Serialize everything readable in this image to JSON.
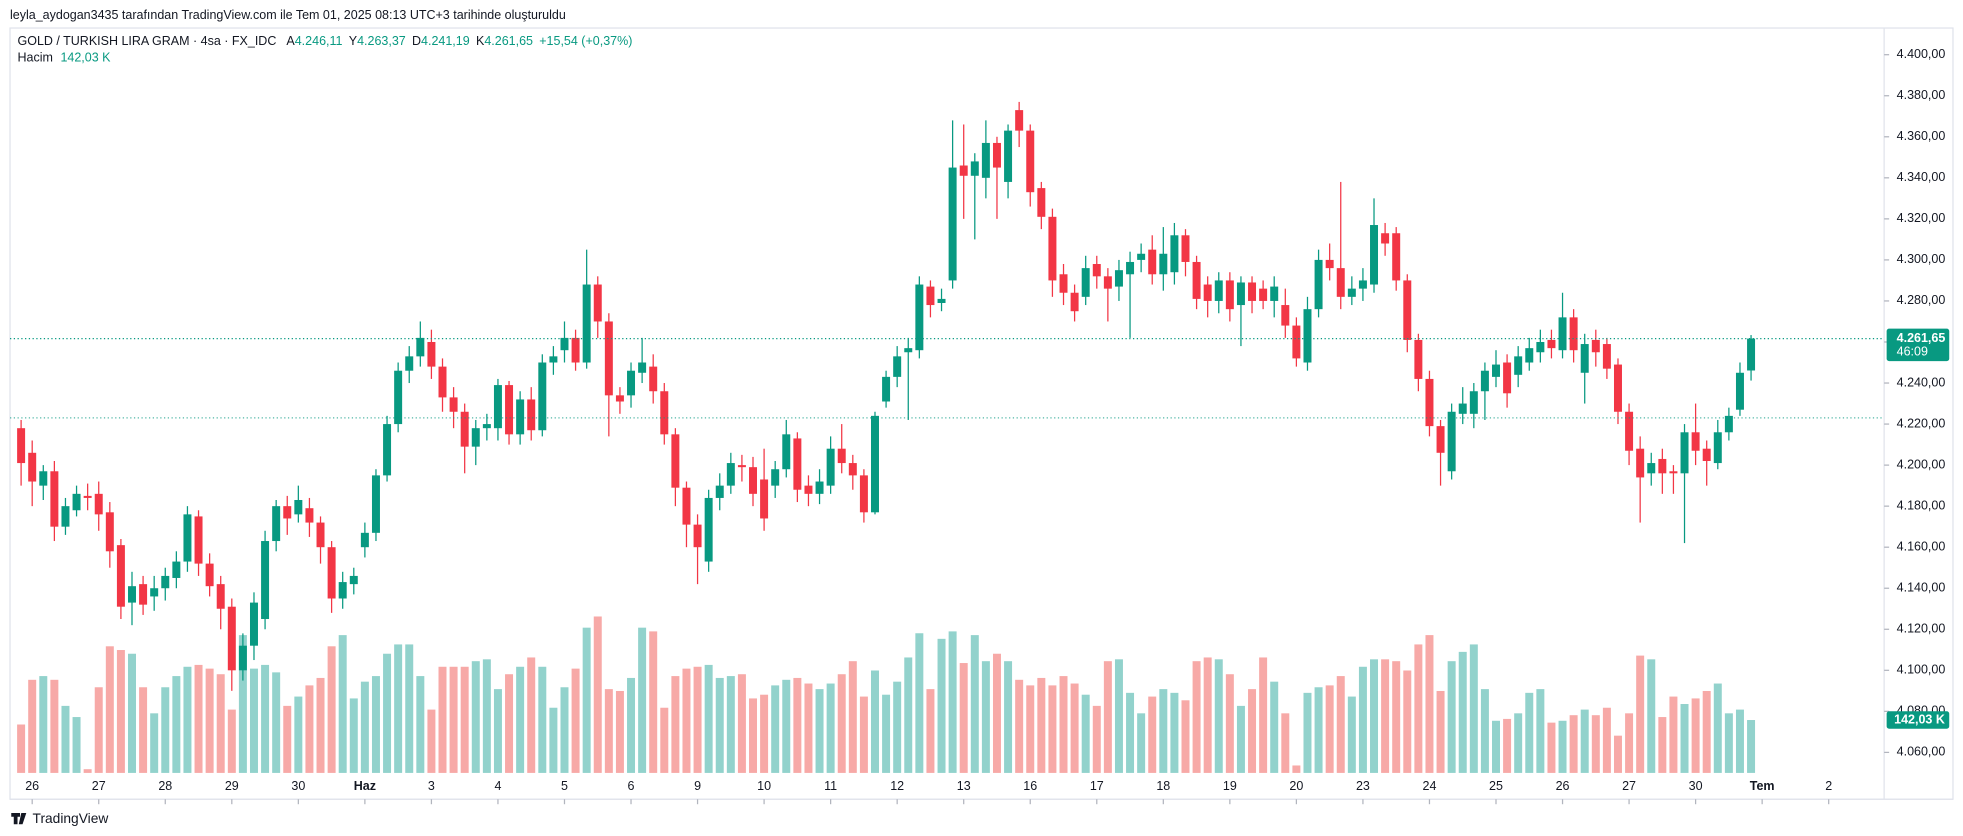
{
  "header": "leyla_aydogan3435 tarafından TradingView.com ile Tem 01, 2025 08:13 UTC+3 tarihinde oluşturuldu",
  "footer": "TradingView",
  "chart_data": {
    "type": "candlestick",
    "title": "GOLD / TURKISH LIRA GRAM · 4sa · FX_IDC",
    "ohlc_legend": [
      {
        "label": "A",
        "value": "4.246,11"
      },
      {
        "label": "Y",
        "value": "4.263,37"
      },
      {
        "label": "D",
        "value": "4.241,19"
      },
      {
        "label": "K",
        "value": "4.261,65"
      }
    ],
    "change": "+15,54 (+0,37%)",
    "volume_title": "Hacim",
    "volume_legend": "142,03 K",
    "last_price_label": "4.261,65",
    "countdown": "46:09",
    "last_volume_label": "142,03 K",
    "ref_price": 4223,
    "up_color": "#089981",
    "down_color": "#f23645",
    "volume_up_color": "#92d2cc",
    "volume_down_color": "#f7a9a7",
    "grid": false,
    "ylim": [
      4050,
      4413
    ],
    "vlim": [
      0,
      600
    ],
    "xlim": [
      -1,
      168
    ],
    "yticks": [
      {
        "value": 4060,
        "label": "4.060,00"
      },
      {
        "value": 4080,
        "label": "4.080,00"
      },
      {
        "value": 4100,
        "label": "4.100,00"
      },
      {
        "value": 4120,
        "label": "4.120,00"
      },
      {
        "value": 4140,
        "label": "4.140,00"
      },
      {
        "value": 4160,
        "label": "4.160,00"
      },
      {
        "value": 4180,
        "label": "4.180,00"
      },
      {
        "value": 4200,
        "label": "4.200,00"
      },
      {
        "value": 4220,
        "label": "4.220,00"
      },
      {
        "value": 4240,
        "label": "4.240,00"
      },
      {
        "value": 4260,
        "label": "4.260,00"
      },
      {
        "value": 4280,
        "label": "4.280,00"
      },
      {
        "value": 4300,
        "label": "4.300,00"
      },
      {
        "value": 4320,
        "label": "4.320,00"
      },
      {
        "value": 4340,
        "label": "4.340,00"
      },
      {
        "value": 4360,
        "label": "4.360,00"
      },
      {
        "value": 4380,
        "label": "4.380,00"
      },
      {
        "value": 4400,
        "label": "4.400,00"
      }
    ],
    "xticks": [
      {
        "value": 1,
        "label": "26"
      },
      {
        "value": 7,
        "label": "27"
      },
      {
        "value": 13,
        "label": "28"
      },
      {
        "value": 19,
        "label": "29"
      },
      {
        "value": 25,
        "label": "30"
      },
      {
        "value": 31,
        "label": "Haz"
      },
      {
        "value": 37,
        "label": "3"
      },
      {
        "value": 43,
        "label": "4"
      },
      {
        "value": 49,
        "label": "5"
      },
      {
        "value": 55,
        "label": "6"
      },
      {
        "value": 61,
        "label": "9"
      },
      {
        "value": 67,
        "label": "10"
      },
      {
        "value": 73,
        "label": "11"
      },
      {
        "value": 79,
        "label": "12"
      },
      {
        "value": 85,
        "label": "13"
      },
      {
        "value": 91,
        "label": "16"
      },
      {
        "value": 97,
        "label": "17"
      },
      {
        "value": 103,
        "label": "18"
      },
      {
        "value": 109,
        "label": "19"
      },
      {
        "value": 115,
        "label": "20"
      },
      {
        "value": 121,
        "label": "23"
      },
      {
        "value": 127,
        "label": "24"
      },
      {
        "value": 133,
        "label": "25"
      },
      {
        "value": 139,
        "label": "26"
      },
      {
        "value": 145,
        "label": "27"
      },
      {
        "value": 151,
        "label": "30"
      },
      {
        "value": 157,
        "label": "Tem"
      },
      {
        "value": 163,
        "label": "2"
      }
    ],
    "bold_xticks": [
      "Haz",
      "Tem"
    ],
    "open": [
      4218,
      4206,
      4190,
      4197,
      4170,
      4178,
      4185,
      4186,
      4177,
      4161,
      4133,
      4142,
      4136,
      4140,
      4145,
      4153,
      4175,
      4152,
      4142,
      4131,
      4100,
      4112,
      4125,
      4163,
      4180,
      4176,
      4179,
      4172,
      4160,
      4135,
      4142,
      4160,
      4167,
      4195,
      4220,
      4246,
      4253,
      4260,
      4248,
      4233,
      4226,
      4209,
      4218,
      4218,
      4239,
      4215,
      4232,
      4217,
      4250,
      4256,
      4262,
      4250,
      4288,
      4270,
      4234,
      4234,
      4245,
      4248,
      4236,
      4215,
      4189,
      4171,
      4153,
      4184,
      4190,
      4200,
      4199,
      4193,
      4190,
      4198,
      4213,
      4190,
      4186,
      4190,
      4208,
      4201,
      4195,
      4177,
      4231,
      4243,
      4255,
      4256,
      4287,
      4279,
      4290,
      4346,
      4341,
      4340,
      4357,
      4338,
      4373,
      4363,
      4335,
      4321,
      4293,
      4284,
      4282,
      4298,
      4292,
      4287,
      4293,
      4300,
      4305,
      4293,
      4294,
      4312,
      4299,
      4288,
      4280,
      4290,
      4278,
      4289,
      4286,
      4280,
      4278,
      4268,
      4250,
      4276,
      4300,
      4296,
      4282,
      4286,
      4288,
      4313,
      4313,
      4290,
      4261,
      4242,
      4219,
      4197,
      4225,
      4225,
      4236,
      4243,
      4250,
      4244,
      4250,
      4255,
      4261,
      4256,
      4272,
      4245,
      4261,
      4259,
      4249,
      4226,
      4208,
      4196,
      4203,
      4197,
      4196,
      4216,
      4208,
      4201,
      4216,
      4227,
      4246.11
    ],
    "high": [
      4222,
      4212,
      4200,
      4202,
      4184,
      4190,
      4191,
      4192,
      4182,
      4164,
      4148,
      4146,
      4146,
      4150,
      4158,
      4180,
      4178,
      4157,
      4146,
      4135,
      4118,
      4138,
      4168,
      4183,
      4185,
      4190,
      4184,
      4175,
      4163,
      4148,
      4150,
      4172,
      4198,
      4224,
      4250,
      4258,
      4270,
      4266,
      4252,
      4238,
      4230,
      4222,
      4225,
      4242,
      4241,
      4236,
      4238,
      4254,
      4258,
      4270,
      4266,
      4305,
      4292,
      4274,
      4238,
      4250,
      4262,
      4254,
      4240,
      4218,
      4192,
      4176,
      4188,
      4196,
      4206,
      4205,
      4204,
      4208,
      4202,
      4222,
      4216,
      4195,
      4198,
      4214,
      4220,
      4205,
      4198,
      4226,
      4246,
      4258,
      4262,
      4292,
      4290,
      4286,
      4368,
      4366,
      4352,
      4368,
      4360,
      4366,
      4377,
      4366,
      4338,
      4325,
      4298,
      4288,
      4302,
      4302,
      4296,
      4300,
      4304,
      4308,
      4312,
      4316,
      4318,
      4315,
      4302,
      4292,
      4294,
      4294,
      4292,
      4292,
      4290,
      4292,
      4286,
      4272,
      4282,
      4305,
      4308,
      4338,
      4292,
      4296,
      4330,
      4318,
      4316,
      4293,
      4264,
      4246,
      4222,
      4230,
      4238,
      4240,
      4250,
      4256,
      4254,
      4258,
      4262,
      4266,
      4266,
      4284,
      4276,
      4264,
      4266,
      4262,
      4252,
      4230,
      4214,
      4206,
      4208,
      4200,
      4220,
      4230,
      4212,
      4222,
      4228,
      4250,
      4263.37
    ],
    "low": [
      4190,
      4180,
      4183,
      4163,
      4166,
      4175,
      4178,
      4168,
      4150,
      4125,
      4122,
      4127,
      4129,
      4134,
      4140,
      4148,
      4146,
      4136,
      4120,
      4090,
      4095,
      4105,
      4120,
      4158,
      4166,
      4172,
      4165,
      4152,
      4128,
      4130,
      4137,
      4155,
      4163,
      4192,
      4216,
      4240,
      4248,
      4242,
      4226,
      4218,
      4196,
      4200,
      4212,
      4212,
      4210,
      4210,
      4212,
      4214,
      4244,
      4250,
      4246,
      4247,
      4262,
      4214,
      4225,
      4228,
      4240,
      4230,
      4210,
      4180,
      4160,
      4142,
      4148,
      4178,
      4186,
      4192,
      4180,
      4168,
      4184,
      4194,
      4182,
      4180,
      4181,
      4186,
      4196,
      4188,
      4172,
      4176,
      4228,
      4238,
      4222,
      4252,
      4272,
      4275,
      4286,
      4320,
      4310,
      4330,
      4320,
      4330,
      4355,
      4326,
      4315,
      4282,
      4278,
      4270,
      4278,
      4286,
      4270,
      4280,
      4262,
      4294,
      4288,
      4285,
      4288,
      4292,
      4276,
      4272,
      4274,
      4270,
      4258,
      4274,
      4276,
      4272,
      4262,
      4248,
      4246,
      4272,
      4290,
      4276,
      4278,
      4280,
      4284,
      4302,
      4285,
      4255,
      4236,
      4214,
      4190,
      4193,
      4220,
      4218,
      4222,
      4238,
      4228,
      4238,
      4246,
      4250,
      4252,
      4252,
      4250,
      4230,
      4248,
      4242,
      4220,
      4200,
      4172,
      4190,
      4186,
      4186,
      4162,
      4200,
      4190,
      4198,
      4212,
      4224,
      4241.19
    ],
    "close": [
      4201,
      4192,
      4197,
      4170,
      4180,
      4186,
      4184,
      4176,
      4158,
      4131,
      4141,
      4132,
      4140,
      4146,
      4153,
      4176,
      4152,
      4141,
      4130,
      4100,
      4112,
      4133,
      4163,
      4180,
      4174,
      4183,
      4172,
      4160,
      4135,
      4143,
      4146,
      4167,
      4195,
      4220,
      4246,
      4253,
      4262,
      4248,
      4233,
      4226,
      4209,
      4218,
      4220,
      4239,
      4215,
      4232,
      4217,
      4250,
      4253,
      4262,
      4250,
      4288,
      4270,
      4234,
      4231,
      4246,
      4250,
      4236,
      4215,
      4189,
      4171,
      4160,
      4184,
      4190,
      4201,
      4199,
      4186,
      4174,
      4198,
      4215,
      4188,
      4186,
      4192,
      4208,
      4201,
      4195,
      4177,
      4224,
      4243,
      4253,
      4257,
      4288,
      4278,
      4281,
      4345,
      4341,
      4348,
      4357,
      4345,
      4363,
      4363,
      4333,
      4321,
      4290,
      4284,
      4275,
      4296,
      4292,
      4286,
      4295,
      4299,
      4303,
      4293,
      4303,
      4312,
      4299,
      4281,
      4280,
      4290,
      4276,
      4289,
      4280,
      4280,
      4287,
      4268,
      4252,
      4276,
      4300,
      4296,
      4282,
      4286,
      4290,
      4317,
      4308,
      4290,
      4261,
      4242,
      4219,
      4206,
      4226,
      4230,
      4236,
      4246,
      4249,
      4235,
      4253,
      4257,
      4260,
      4257,
      4272,
      4256,
      4259,
      4255,
      4247,
      4226,
      4207,
      4194,
      4201,
      4196,
      4196,
      4216,
      4207,
      4202,
      4216,
      4224,
      4245,
      4261.65
    ],
    "volume": [
      130,
      250,
      260,
      250,
      180,
      150,
      10,
      230,
      340,
      330,
      320,
      230,
      160,
      230,
      260,
      285,
      290,
      280,
      265,
      170,
      370,
      280,
      290,
      270,
      180,
      205,
      235,
      255,
      340,
      370,
      200,
      245,
      260,
      320,
      345,
      345,
      260,
      170,
      285,
      285,
      285,
      300,
      305,
      225,
      265,
      285,
      310,
      285,
      175,
      230,
      280,
      390,
      420,
      225,
      220,
      255,
      390,
      380,
      175,
      260,
      280,
      285,
      290,
      255,
      260,
      265,
      200,
      210,
      235,
      250,
      255,
      240,
      225,
      240,
      265,
      300,
      205,
      275,
      210,
      245,
      310,
      375,
      225,
      360,
      380,
      295,
      370,
      300,
      320,
      300,
      250,
      235,
      255,
      235,
      260,
      240,
      210,
      180,
      300,
      305,
      215,
      160,
      205,
      225,
      215,
      195,
      300,
      310,
      305,
      265,
      180,
      225,
      310,
      245,
      160,
      20,
      215,
      230,
      235,
      260,
      205,
      285,
      305,
      305,
      300,
      275,
      345,
      370,
      220,
      300,
      325,
      345,
      225,
      140,
      145,
      160,
      215,
      225,
      135,
      140,
      155,
      170,
      155,
      175,
      100,
      160,
      315,
      305,
      150,
      205,
      185,
      200,
      220,
      240,
      160,
      170,
      142.03
    ]
  }
}
